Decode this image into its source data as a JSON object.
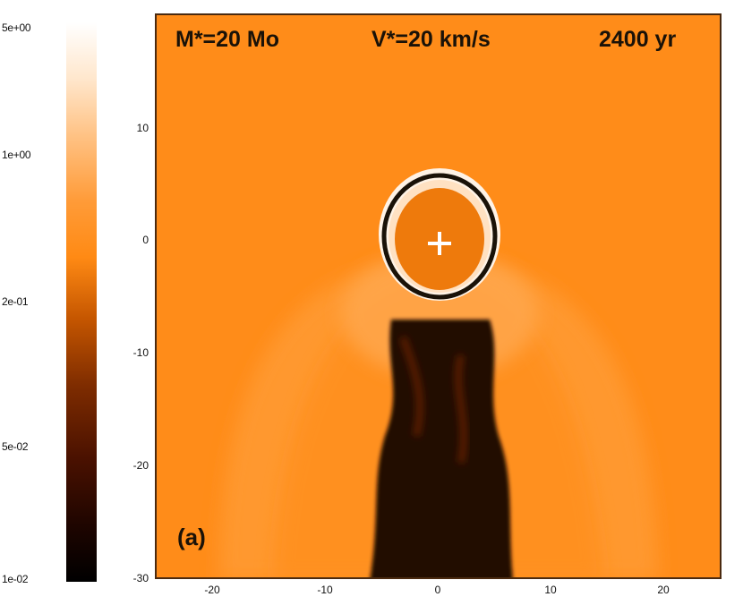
{
  "colorbar": {
    "labels": [
      "5e+00",
      "1e+00",
      "2e-01",
      "5e-02",
      "1e-02"
    ]
  },
  "title": {
    "mass": "M*=20 Mo",
    "velocity": "V*=20 km/s",
    "time": "2400 yr"
  },
  "panel_label": "(a)",
  "axes": {
    "x_ticks": [
      "-20",
      "-10",
      "0",
      "10",
      "20"
    ],
    "y_ticks": [
      "10",
      "0",
      "-10",
      "-20",
      "-30"
    ]
  },
  "colors": {
    "background_medium": "#ff8c19",
    "bubble_interior": "#ee7a0c",
    "wake_dark": "#220800",
    "bow_shock_light": "#ffa94a"
  }
}
